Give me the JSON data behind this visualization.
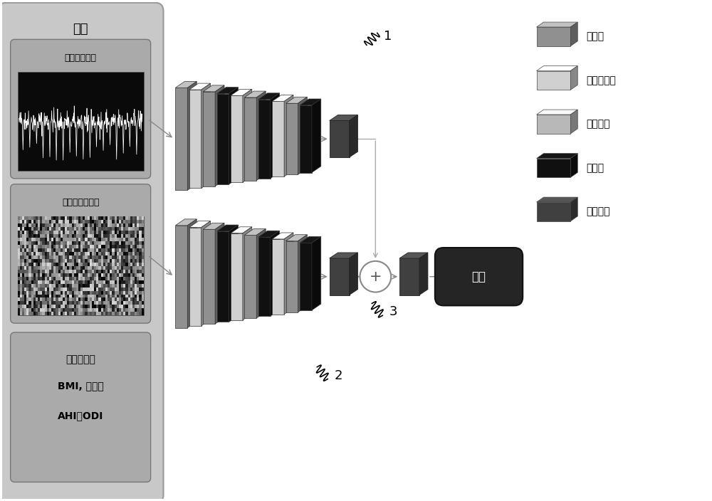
{
  "bg_color": "#ffffff",
  "input_label": "输入",
  "input_box1_label": "血氧信号图像",
  "input_box2_label": "功率谱特征图像",
  "input_box3_lines": [
    "性别、年龄",
    "BMI, 糖尿病",
    "AHI，ODI"
  ],
  "layer_colors": {
    "conv": "#909090",
    "bn": "#d0d0d0",
    "act": "#b8b8b8",
    "pool": "#101010",
    "fc": "#404040"
  },
  "legend_items": [
    {
      "color": "#909090",
      "label": "卷积层"
    },
    {
      "color": "#d0d0d0",
      "label": "批标准化层"
    },
    {
      "color": "#b8b8b8",
      "label": "激活函数"
    },
    {
      "color": "#101010",
      "label": "池化层"
    },
    {
      "color": "#404040",
      "label": "全连接层"
    }
  ],
  "branch1_layers": [
    {
      "color": "#909090"
    },
    {
      "color": "#d0d0d0"
    },
    {
      "color": "#909090"
    },
    {
      "color": "#101010"
    },
    {
      "color": "#d0d0d0"
    },
    {
      "color": "#909090"
    },
    {
      "color": "#101010"
    },
    {
      "color": "#d0d0d0"
    },
    {
      "color": "#909090"
    },
    {
      "color": "#101010"
    }
  ],
  "branch2_layers": [
    {
      "color": "#909090"
    },
    {
      "color": "#d0d0d0"
    },
    {
      "color": "#909090"
    },
    {
      "color": "#101010"
    },
    {
      "color": "#d0d0d0"
    },
    {
      "color": "#909090"
    },
    {
      "color": "#101010"
    },
    {
      "color": "#d0d0d0"
    },
    {
      "color": "#909090"
    },
    {
      "color": "#101010"
    }
  ],
  "output_label": "输出",
  "label1": "1",
  "label2": "2",
  "label3": "3"
}
